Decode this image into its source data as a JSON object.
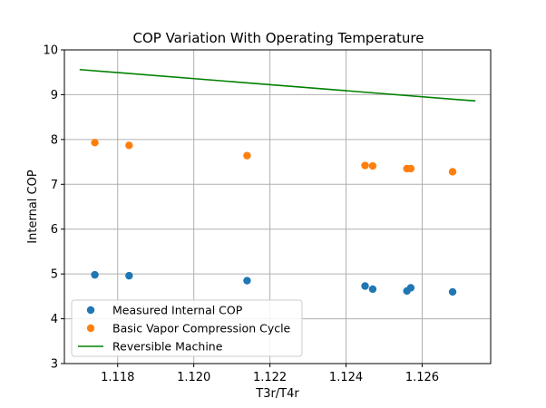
{
  "chart_data": {
    "type": "scatter",
    "title": "COP Variation With Operating Temperature",
    "xlabel": "T3r/T4r",
    "ylabel": "Internal COP",
    "xlim": [
      1.1166,
      1.1278
    ],
    "ylim": [
      3,
      10
    ],
    "xticks": [
      1.118,
      1.12,
      1.122,
      1.124,
      1.126
    ],
    "xtick_labels": [
      "1.118",
      "1.120",
      "1.122",
      "1.124",
      "1.126"
    ],
    "yticks": [
      3,
      4,
      5,
      6,
      7,
      8,
      9,
      10
    ],
    "ytick_labels": [
      "3",
      "4",
      "5",
      "6",
      "7",
      "8",
      "9",
      "10"
    ],
    "grid": true,
    "legend_position": "lower-left",
    "series": [
      {
        "name": "Measured Internal COP",
        "kind": "scatter",
        "color": "#1f77b4",
        "points": [
          [
            1.1174,
            4.98
          ],
          [
            1.1183,
            4.96
          ],
          [
            1.1214,
            4.85
          ],
          [
            1.1245,
            4.73
          ],
          [
            1.1247,
            4.66
          ],
          [
            1.1256,
            4.62
          ],
          [
            1.1257,
            4.69
          ],
          [
            1.1268,
            4.6
          ]
        ]
      },
      {
        "name": "Basic Vapor Compression Cycle",
        "kind": "scatter",
        "color": "#ff7f0e",
        "points": [
          [
            1.1174,
            7.93
          ],
          [
            1.1183,
            7.87
          ],
          [
            1.1214,
            7.64
          ],
          [
            1.1245,
            7.42
          ],
          [
            1.1247,
            7.41
          ],
          [
            1.1256,
            7.35
          ],
          [
            1.1257,
            7.35
          ],
          [
            1.1268,
            7.28
          ]
        ]
      },
      {
        "name": "Reversible Machine",
        "kind": "line",
        "color": "#008000",
        "points": [
          [
            1.117,
            9.56
          ],
          [
            1.1274,
            8.86
          ]
        ]
      }
    ]
  }
}
